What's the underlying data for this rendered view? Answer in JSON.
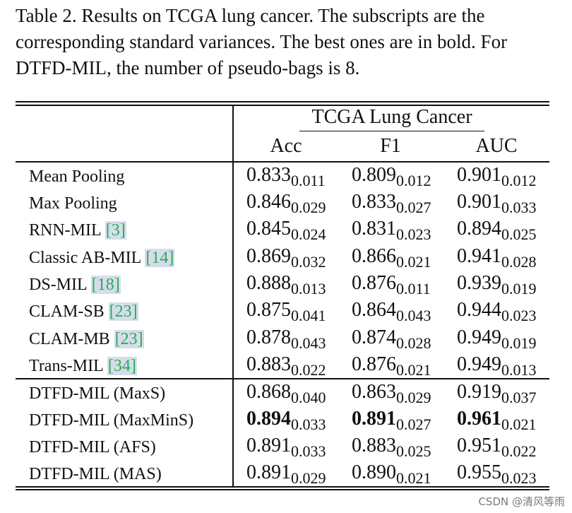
{
  "caption": {
    "lines": [
      "Table 2.  Results on TCGA lung cancer.  The subscripts are the",
      "corresponding standard variances. The best ones are in bold. For",
      "DTFD-MIL, the number of pseudo-bags is 8."
    ]
  },
  "table": {
    "group_header": "TCGA Lung Cancer",
    "columns": [
      "Acc",
      "F1",
      "AUC"
    ],
    "rows": [
      {
        "method": "Mean Pooling",
        "cite": "",
        "acc": {
          "v": "0.833",
          "s": "0.011"
        },
        "f1": {
          "v": "0.809",
          "s": "0.012"
        },
        "auc": {
          "v": "0.901",
          "s": "0.012"
        }
      },
      {
        "method": "Max Pooling",
        "cite": "",
        "acc": {
          "v": "0.846",
          "s": "0.029"
        },
        "f1": {
          "v": "0.833",
          "s": "0.027"
        },
        "auc": {
          "v": "0.901",
          "s": "0.033"
        }
      },
      {
        "method": "RNN-MIL ",
        "cite": "[3]",
        "acc": {
          "v": "0.845",
          "s": "0.024"
        },
        "f1": {
          "v": "0.831",
          "s": "0.023"
        },
        "auc": {
          "v": "0.894",
          "s": "0.025"
        }
      },
      {
        "method": "Classic AB-MIL ",
        "cite": "[14]",
        "acc": {
          "v": "0.869",
          "s": "0.032"
        },
        "f1": {
          "v": "0.866",
          "s": "0.021"
        },
        "auc": {
          "v": "0.941",
          "s": "0.028"
        }
      },
      {
        "method": "DS-MIL ",
        "cite": "[18]",
        "acc": {
          "v": "0.888",
          "s": "0.013"
        },
        "f1": {
          "v": "0.876",
          "s": "0.011"
        },
        "auc": {
          "v": "0.939",
          "s": "0.019"
        }
      },
      {
        "method": "CLAM-SB ",
        "cite": "[23]",
        "acc": {
          "v": "0.875",
          "s": "0.041"
        },
        "f1": {
          "v": "0.864",
          "s": "0.043"
        },
        "auc": {
          "v": "0.944",
          "s": "0.023"
        }
      },
      {
        "method": "CLAM-MB ",
        "cite": "[23]",
        "acc": {
          "v": "0.878",
          "s": "0.043"
        },
        "f1": {
          "v": "0.874",
          "s": "0.028"
        },
        "auc": {
          "v": "0.949",
          "s": "0.019"
        }
      },
      {
        "method": "Trans-MIL ",
        "cite": "[34]",
        "acc": {
          "v": "0.883",
          "s": "0.022"
        },
        "f1": {
          "v": "0.876",
          "s": "0.021"
        },
        "auc": {
          "v": "0.949",
          "s": "0.013"
        }
      },
      {
        "method": "DTFD-MIL (MaxS)",
        "cite": "",
        "acc": {
          "v": "0.868",
          "s": "0.040"
        },
        "f1": {
          "v": "0.863",
          "s": "0.029"
        },
        "auc": {
          "v": "0.919",
          "s": "0.037"
        }
      },
      {
        "method": "DTFD-MIL (MaxMinS)",
        "cite": "",
        "acc": {
          "v": "0.894",
          "s": "0.033"
        },
        "f1": {
          "v": "0.891",
          "s": "0.027"
        },
        "auc": {
          "v": "0.961",
          "s": "0.021"
        }
      },
      {
        "method": "DTFD-MIL (AFS)",
        "cite": "",
        "acc": {
          "v": "0.891",
          "s": "0.033"
        },
        "f1": {
          "v": "0.883",
          "s": "0.025"
        },
        "auc": {
          "v": "0.951",
          "s": "0.022"
        }
      },
      {
        "method": "DTFD-MIL (MAS)",
        "cite": "",
        "acc": {
          "v": "0.891",
          "s": "0.029"
        },
        "f1": {
          "v": "0.890",
          "s": "0.021"
        },
        "auc": {
          "v": "0.955",
          "s": "0.023"
        }
      }
    ],
    "bold_row": 9
  },
  "watermark": "CSDN @清风等雨"
}
